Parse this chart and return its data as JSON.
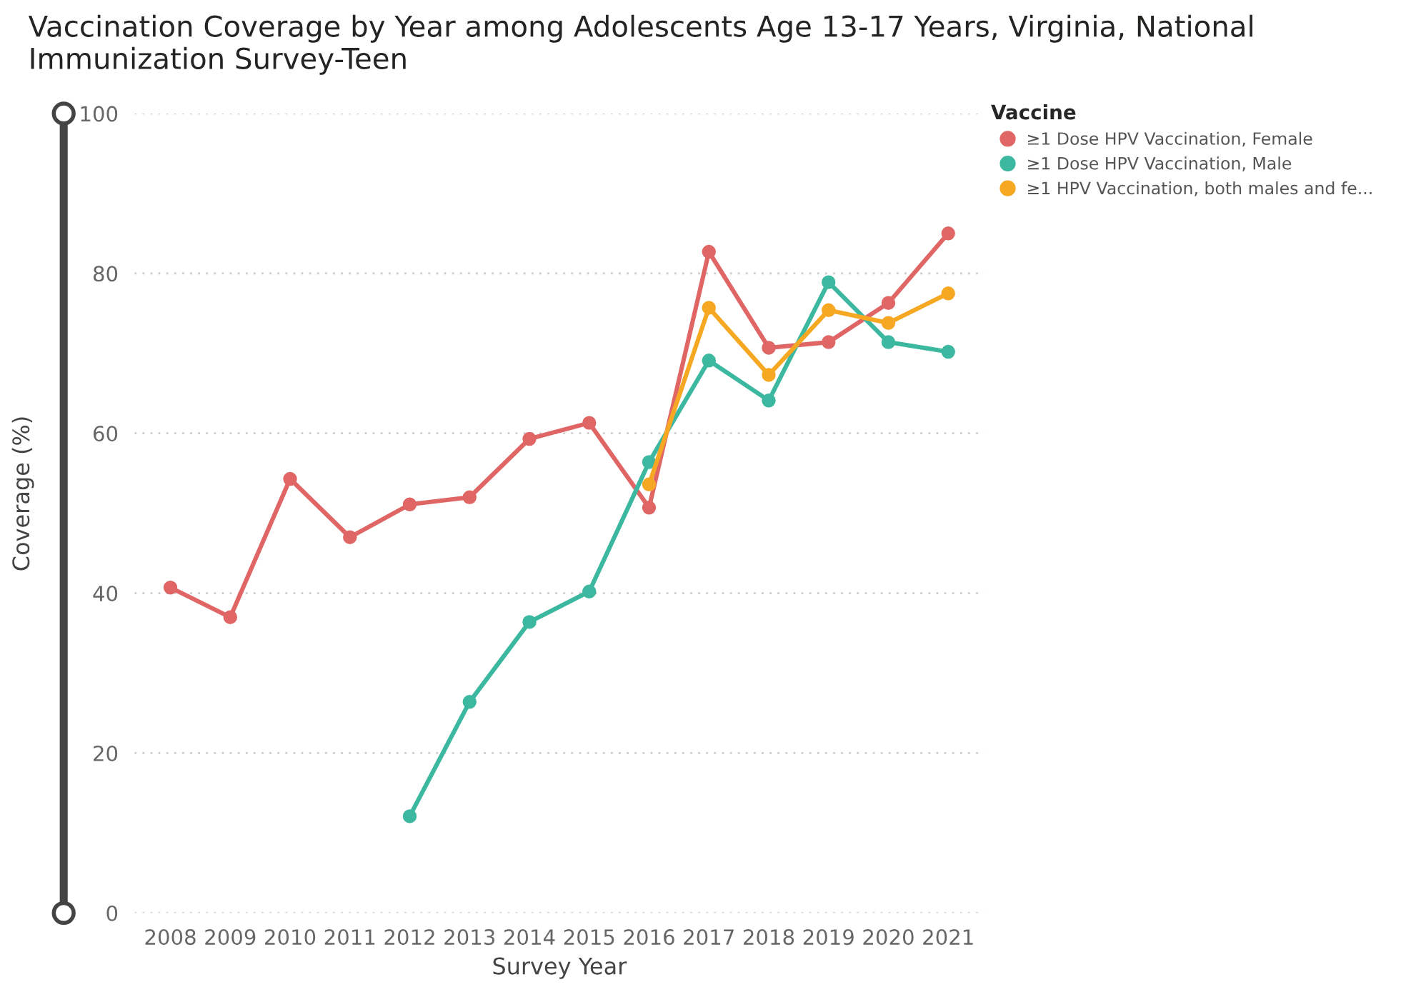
{
  "chart_data": {
    "type": "line",
    "title": "Vaccination Coverage by Year among Adolescents Age 13-17 Years, Virginia, National Immunization Survey-Teen",
    "xlabel": "Survey Year",
    "ylabel": "Coverage (%)",
    "legend_title": "Vaccine",
    "categories": [
      "2008",
      "2009",
      "2010",
      "2011",
      "2012",
      "2013",
      "2014",
      "2015",
      "2016",
      "2017",
      "2018",
      "2019",
      "2020",
      "2021"
    ],
    "series": [
      {
        "name": "≥1 Dose HPV Vaccination, Female",
        "color": "#e06666",
        "values": [
          40.7,
          37.0,
          54.3,
          47.0,
          51.1,
          52.0,
          59.3,
          61.3,
          50.7,
          82.7,
          70.7,
          71.4,
          76.3,
          85.0
        ]
      },
      {
        "name": "≥1 Dose HPV Vaccination, Male",
        "color": "#3db8a0",
        "values": [
          null,
          null,
          null,
          null,
          12.1,
          26.4,
          36.4,
          40.2,
          56.4,
          69.1,
          64.1,
          78.9,
          71.4,
          70.2
        ]
      },
      {
        "name": "≥1 HPV Vaccination, both males and fe...",
        "color": "#f7a823",
        "values": [
          null,
          null,
          null,
          null,
          null,
          null,
          null,
          null,
          53.6,
          75.7,
          67.3,
          75.4,
          73.8,
          77.5
        ]
      }
    ],
    "ylim": [
      0,
      100
    ],
    "yticks": [
      0,
      20,
      40,
      60,
      80,
      100
    ],
    "grid": "y",
    "legend": "top right",
    "marker": "circle",
    "line_style": "solid"
  }
}
